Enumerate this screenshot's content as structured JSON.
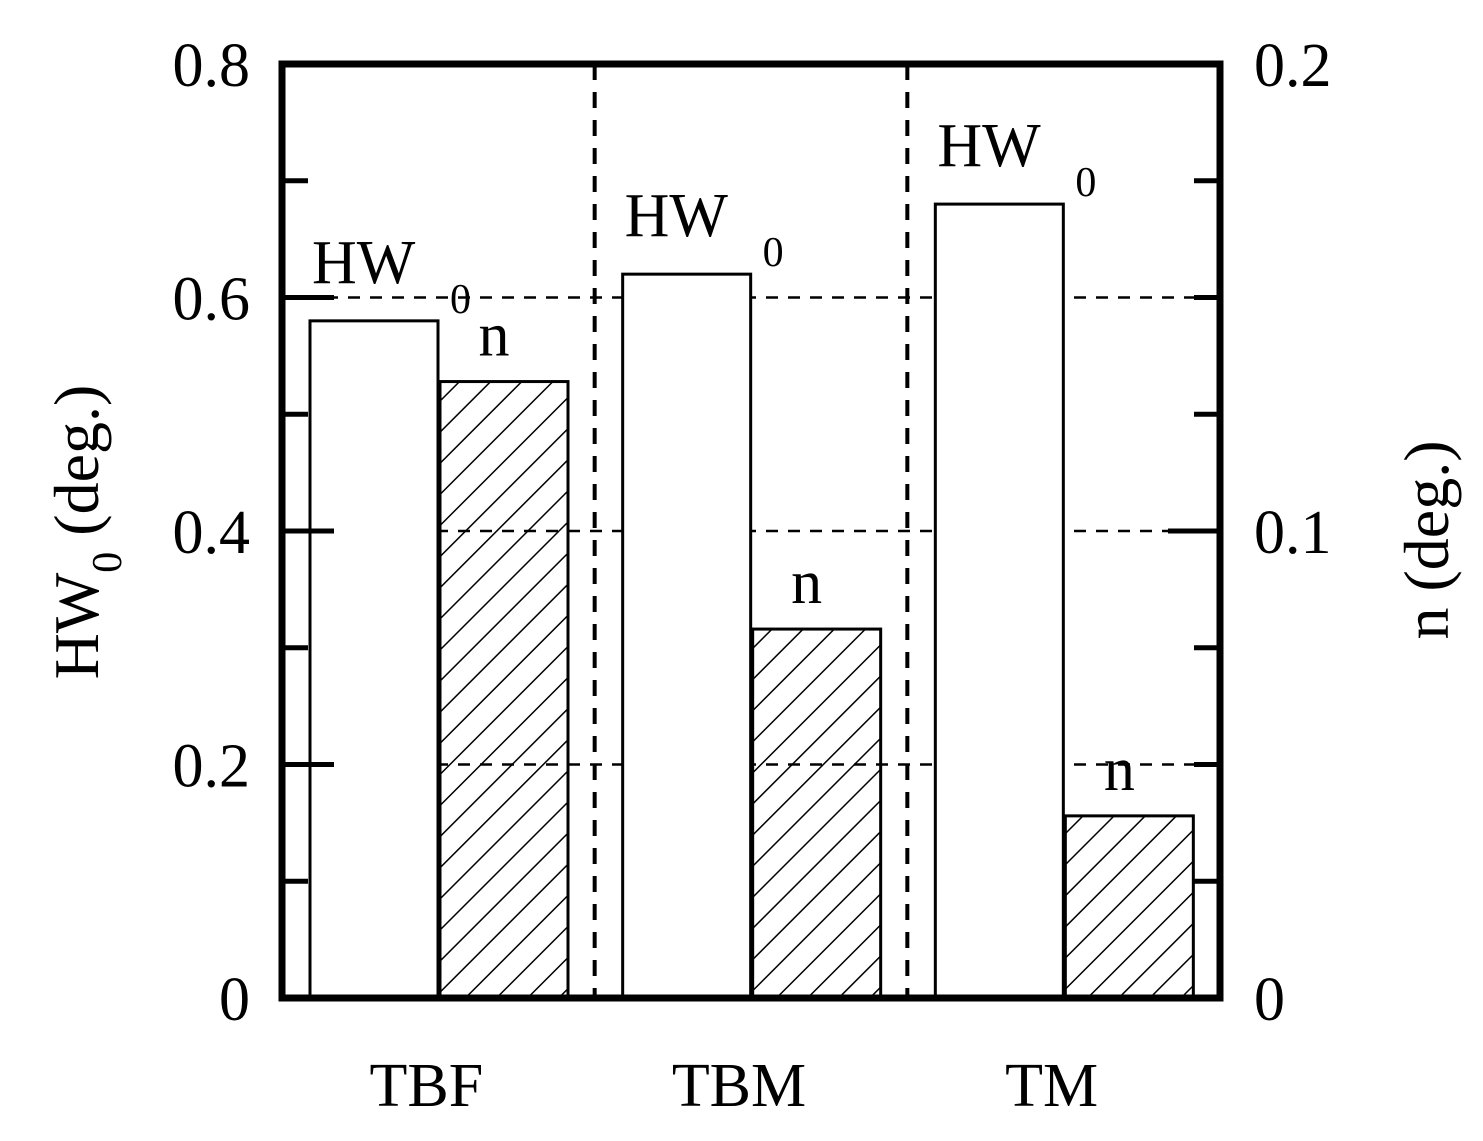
{
  "chart_data": {
    "type": "bar",
    "categories": [
      "TBF",
      "TBM",
      "TM"
    ],
    "series": [
      {
        "name": "HW0",
        "axis": "left",
        "fill": "open",
        "values": [
          0.58,
          0.62,
          0.68
        ]
      },
      {
        "name": "n",
        "axis": "right",
        "fill": "hatched",
        "values": [
          0.132,
          0.079,
          0.039
        ]
      }
    ],
    "left_axis": {
      "label_main": "HW",
      "label_sub": "0",
      "label_rest": " (deg.)",
      "ylim": [
        0,
        0.8
      ],
      "ticks": [
        "0",
        "0.2",
        "0.4",
        "0.6",
        "0.8"
      ]
    },
    "right_axis": {
      "label": "n (deg.)",
      "ylim": [
        0,
        0.2
      ],
      "ticks": [
        "0",
        "0.1",
        "0.2"
      ]
    },
    "bar_labels": {
      "hw_main": "HW",
      "hw_sub": "0",
      "n": "n"
    },
    "grid": "dashed horizontal lines",
    "colors": {
      "line": "#000000",
      "background": "#ffffff"
    }
  }
}
